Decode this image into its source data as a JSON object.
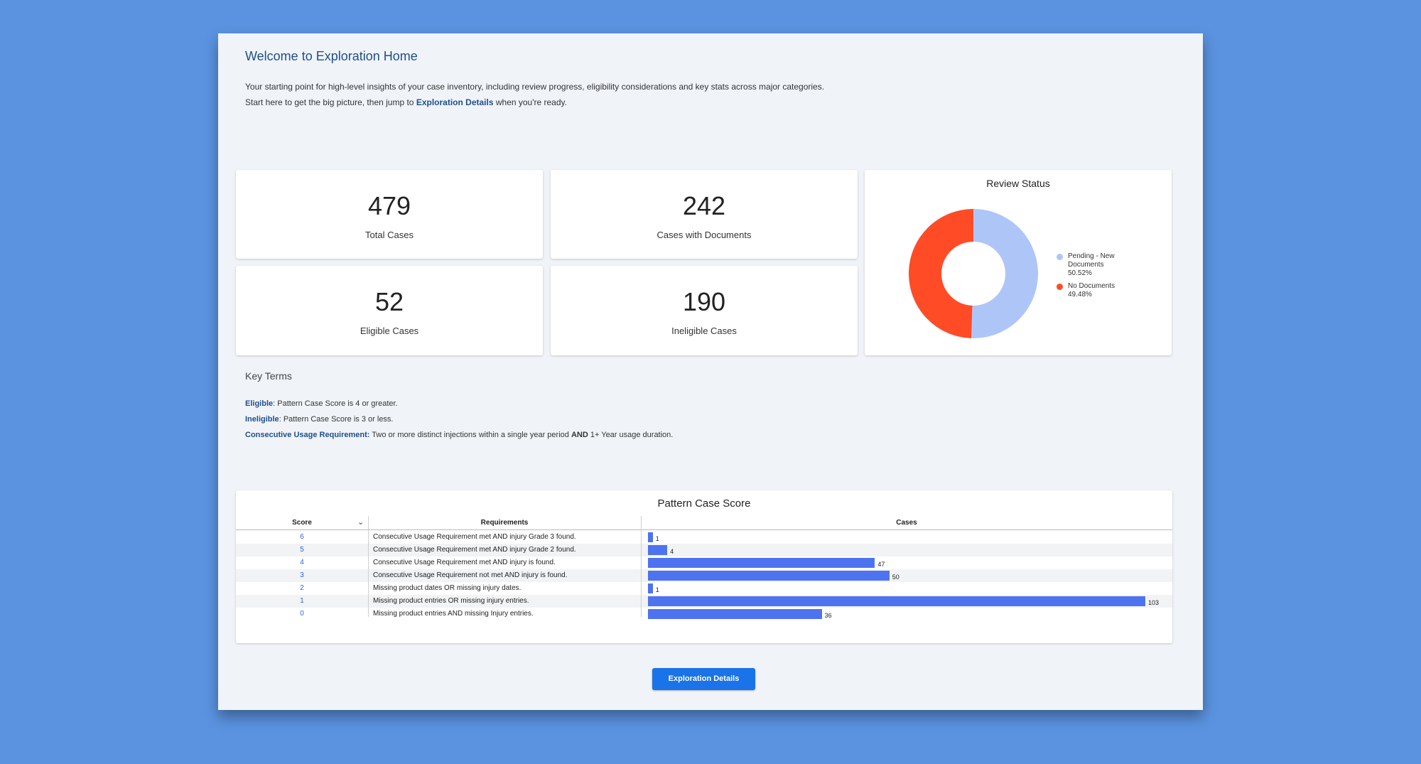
{
  "header": {
    "title": "Welcome to Exploration Home",
    "intro_line1": "Your starting point for high-level insights of your case inventory, including review progress, eligibility considerations and key stats across major categories.",
    "intro_line2_pre": "Start here to get the big picture, then jump to ",
    "intro_link": "Exploration Details",
    "intro_line2_post": " when you're ready."
  },
  "kpis": [
    {
      "value": "479",
      "label": "Total Cases"
    },
    {
      "value": "242",
      "label": "Cases with Documents"
    },
    {
      "value": "52",
      "label": "Eligible Cases"
    },
    {
      "value": "190",
      "label": "Ineligible Cases"
    }
  ],
  "review_status": {
    "title": "Review Status",
    "legend": [
      {
        "label_line1": "Pending - New",
        "label_line2": "Documents",
        "pct": "50.52%",
        "color": "#aec6f7"
      },
      {
        "label_line1": "No Documents",
        "label_line2": "",
        "pct": "49.48%",
        "color": "#ff4b26"
      }
    ]
  },
  "chart_data": [
    {
      "type": "pie",
      "title": "Review Status",
      "categories": [
        "Pending - New Documents",
        "No Documents"
      ],
      "values": [
        50.52,
        49.48
      ],
      "colors": [
        "#aec6f7",
        "#ff4b26"
      ],
      "legend_position": "right"
    },
    {
      "type": "bar",
      "title": "Pattern Case Score",
      "categories": [
        "6",
        "5",
        "4",
        "3",
        "2",
        "1",
        "0"
      ],
      "values": [
        1,
        4,
        47,
        50,
        1,
        103,
        36
      ],
      "color": "#4e73f0"
    }
  ],
  "key_terms": {
    "title": "Key Terms",
    "items": [
      {
        "term": "Eligible",
        "sep": ": ",
        "text": "Pattern Case Score is 4 or greater."
      },
      {
        "term": "Ineligible",
        "sep": ": ",
        "text": "Pattern Case Score is 3 or less."
      },
      {
        "term": "Consecutive Usage Requirement:",
        "sep": " ",
        "text": "Two or more distinct injections within a single year period ",
        "bold": "AND",
        "tail": " 1+ Year usage duration."
      }
    ]
  },
  "score_table": {
    "title": "Pattern Case Score",
    "headers": {
      "score": "Score",
      "requirements": "Requirements",
      "cases": "Cases"
    },
    "rows": [
      {
        "score": "6",
        "requirement": "Consecutive Usage Requirement met AND injury Grade 3 found.",
        "cases": "1"
      },
      {
        "score": "5",
        "requirement": "Consecutive Usage Requirement met AND injury Grade 2 found.",
        "cases": "4"
      },
      {
        "score": "4",
        "requirement": "Consecutive Usage Requirement met AND injury is found.",
        "cases": "47"
      },
      {
        "score": "3",
        "requirement": "Consecutive Usage Requirement not met AND injury is found.",
        "cases": "50"
      },
      {
        "score": "2",
        "requirement": "Missing product dates OR missing injury dates.",
        "cases": "1"
      },
      {
        "score": "1",
        "requirement": "Missing product entries OR missing injury entries.",
        "cases": "103"
      },
      {
        "score": "0",
        "requirement": "Missing product entries AND missing Injury entries.",
        "cases": "36"
      }
    ]
  },
  "footer": {
    "button_label": "Exploration Details"
  }
}
